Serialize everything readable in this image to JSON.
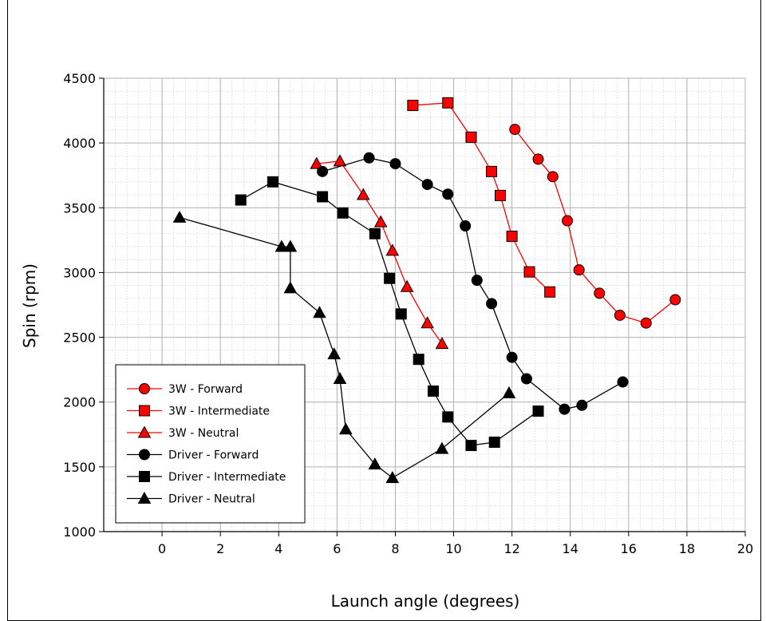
{
  "chart_data": {
    "type": "line",
    "title": "",
    "xlabel": "Launch angle (degrees)",
    "ylabel": "Spin (rpm)",
    "xlim": [
      -2,
      20
    ],
    "ylim": [
      1000,
      4500
    ],
    "x_ticks": [
      0,
      2,
      4,
      6,
      8,
      10,
      12,
      14,
      16,
      18,
      20
    ],
    "y_ticks": [
      1000,
      1500,
      2000,
      2500,
      3000,
      3500,
      4000,
      4500
    ],
    "x_tick_labels": [
      "0",
      "2",
      "4",
      "6",
      "8",
      "10",
      "12",
      "14",
      "16",
      "18",
      "20"
    ],
    "y_tick_labels": [
      "1000",
      "1500",
      "2000",
      "2500",
      "3000",
      "3500",
      "4000",
      "4500"
    ],
    "grid": true,
    "legend_position": "bottom-left",
    "series": [
      {
        "name": "3W - Forward",
        "color": "#ff0000",
        "marker": "circle",
        "points": [
          [
            12.1,
            4105
          ],
          [
            12.9,
            3875
          ],
          [
            13.4,
            3740
          ],
          [
            13.9,
            3400
          ],
          [
            14.3,
            3020
          ],
          [
            15.0,
            2840
          ],
          [
            15.7,
            2670
          ],
          [
            16.6,
            2610
          ],
          [
            17.6,
            2790
          ]
        ]
      },
      {
        "name": "3W - Intermediate",
        "color": "#ff0000",
        "marker": "square",
        "points": [
          [
            8.6,
            4290
          ],
          [
            9.8,
            4310
          ],
          [
            10.6,
            4045
          ],
          [
            11.3,
            3780
          ],
          [
            11.6,
            3595
          ],
          [
            12.0,
            3280
          ],
          [
            12.6,
            3005
          ],
          [
            13.3,
            2850
          ]
        ]
      },
      {
        "name": "3W - Neutral",
        "color": "#ff0000",
        "marker": "triangle",
        "points": [
          [
            5.3,
            3840
          ],
          [
            6.1,
            3860
          ],
          [
            6.9,
            3600
          ],
          [
            7.5,
            3390
          ],
          [
            7.9,
            3170
          ],
          [
            8.4,
            2890
          ],
          [
            9.1,
            2610
          ],
          [
            9.6,
            2450
          ]
        ]
      },
      {
        "name": "Driver - Forward",
        "color": "#000000",
        "marker": "circle",
        "points": [
          [
            5.5,
            3780
          ],
          [
            7.1,
            3885
          ],
          [
            8.0,
            3840
          ],
          [
            9.1,
            3680
          ],
          [
            9.8,
            3605
          ],
          [
            10.4,
            3360
          ],
          [
            10.8,
            2940
          ],
          [
            11.3,
            2760
          ],
          [
            12.0,
            2345
          ],
          [
            12.5,
            2180
          ],
          [
            13.8,
            1945
          ],
          [
            14.4,
            1975
          ],
          [
            15.8,
            2155
          ]
        ]
      },
      {
        "name": "Driver - Intermediate",
        "color": "#000000",
        "marker": "square",
        "points": [
          [
            2.7,
            3560
          ],
          [
            3.8,
            3700
          ],
          [
            5.5,
            3585
          ],
          [
            6.2,
            3460
          ],
          [
            7.3,
            3300
          ],
          [
            7.8,
            2955
          ],
          [
            8.2,
            2680
          ],
          [
            8.8,
            2330
          ],
          [
            9.3,
            2085
          ],
          [
            9.8,
            1885
          ],
          [
            10.6,
            1665
          ],
          [
            11.4,
            1690
          ],
          [
            12.9,
            1930
          ]
        ]
      },
      {
        "name": "Driver - Neutral",
        "color": "#000000",
        "marker": "triangle",
        "points": [
          [
            0.6,
            3425
          ],
          [
            4.1,
            3200
          ],
          [
            4.4,
            3200
          ],
          [
            4.4,
            2880
          ],
          [
            5.4,
            2690
          ],
          [
            5.9,
            2370
          ],
          [
            6.1,
            2180
          ],
          [
            6.3,
            1790
          ],
          [
            7.3,
            1520
          ],
          [
            7.9,
            1415
          ],
          [
            9.6,
            1640
          ],
          [
            11.9,
            2070
          ]
        ]
      }
    ]
  }
}
